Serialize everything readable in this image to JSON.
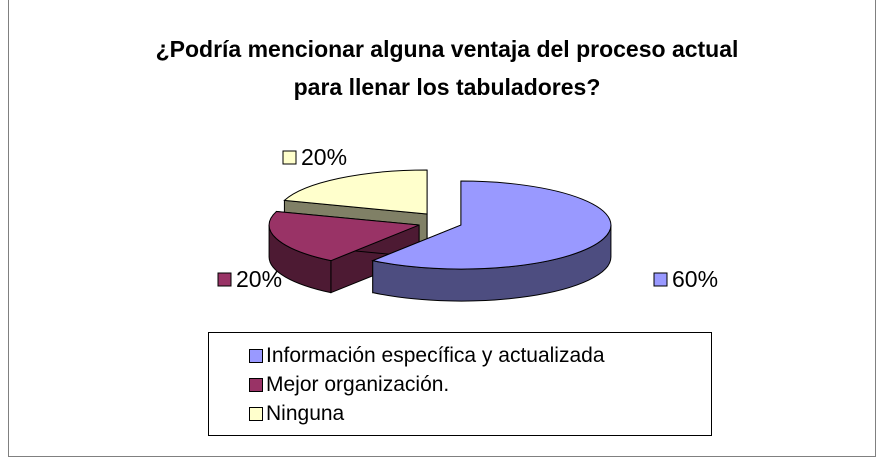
{
  "chart_data": {
    "type": "pie3d",
    "title": "¿Podría mencionar alguna ventaja del proceso actual para llenar los tabuladores?",
    "categories": [
      "Información específica y actualizada",
      "Mejor organización.",
      "Ninguna"
    ],
    "values": [
      60,
      20,
      20
    ],
    "value_labels": [
      "60%",
      "20%",
      "20%"
    ],
    "colors": [
      "#9999ff",
      "#993366",
      "#ffffcc"
    ],
    "legend": "bottom"
  }
}
